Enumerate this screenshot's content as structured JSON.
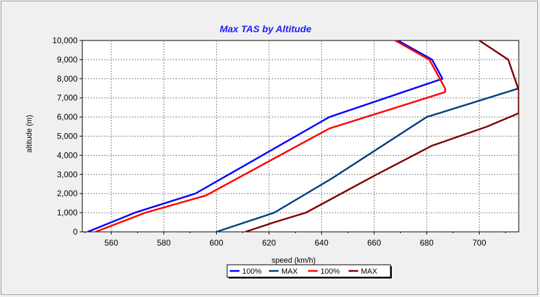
{
  "chart_data": {
    "type": "line",
    "title": "Max TAS by Altitude",
    "xlabel": "speed (km/h)",
    "ylabel": "altitude (m)",
    "xlim": [
      549,
      715
    ],
    "ylim": [
      0,
      10000
    ],
    "xticks": [
      560,
      580,
      600,
      620,
      640,
      660,
      680,
      700
    ],
    "yticks": [
      0,
      1000,
      2000,
      3000,
      4000,
      5000,
      6000,
      7000,
      8000,
      9000,
      10000
    ],
    "ytick_labels": [
      "0",
      "1,000",
      "2,000",
      "3,000",
      "4,000",
      "5,000",
      "6,000",
      "7,000",
      "8,000",
      "9,000",
      "10,000"
    ],
    "grid": true,
    "legend_position": "bottom-center",
    "series": [
      {
        "name": "100%",
        "color": "#0000ff",
        "x": [
          551,
          569,
          592,
          643,
          686,
          682,
          669
        ],
        "y": [
          0,
          1000,
          2000,
          6000,
          8000,
          9000,
          10000
        ]
      },
      {
        "name": "MAX",
        "color": "#004080",
        "x": [
          600,
          622,
          644,
          680,
          715,
          715
        ],
        "y": [
          0,
          1000,
          2800,
          6000,
          7500,
          7600
        ]
      },
      {
        "name": "100%",
        "color": "#ff0000",
        "x": [
          554,
          573,
          596,
          643,
          687,
          687,
          681,
          668
        ],
        "y": [
          0,
          1000,
          1900,
          5400,
          7300,
          7500,
          9000,
          10000
        ]
      },
      {
        "name": "MAX",
        "color": "#800000",
        "x": [
          611,
          622,
          634,
          661,
          682,
          703,
          715,
          715,
          711,
          700
        ],
        "y": [
          0,
          500,
          1000,
          3000,
          4500,
          5500,
          6200,
          7400,
          9000,
          10000
        ]
      }
    ]
  }
}
